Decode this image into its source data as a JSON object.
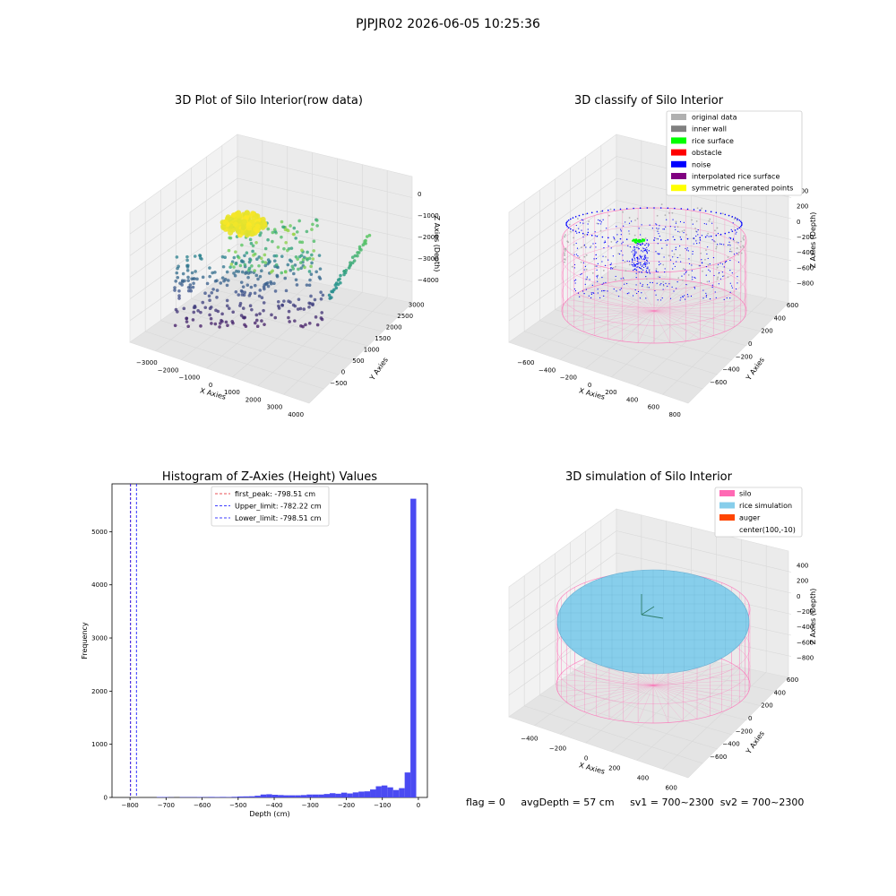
{
  "suptitle": "PJPJR02 2026-06-05 10:25:36",
  "status": {
    "flag": "flag = 0",
    "avg_depth": "avgDepth = 57 cm",
    "sv1": "sv1 = 700~2300",
    "sv2": "sv2 = 700~2300"
  },
  "colors": {
    "hist_bar": "#4a4af2",
    "first_peak": "#e41a1c",
    "limits": "#0000ff",
    "silo": "#ff69b4",
    "rice": "#87ceeb",
    "auger": "#ff4500",
    "original": "#b0b0b0",
    "inner_wall": "#808080",
    "rice_surface": "#00ff00",
    "obstacle": "#ff0000",
    "noise": "#0000ff",
    "interpolated": "#800080",
    "symmetric": "#ffff00"
  },
  "chart_data": [
    {
      "type": "scatter",
      "title": "3D Plot of Silo Interior(row data)",
      "xlabel": "X Axies",
      "ylabel": "Y Axies",
      "zlabel": "Z Axies (Depth)",
      "x_ticks": [
        "−3000",
        "−2000",
        "−1000",
        "0",
        "1000",
        "2000",
        "3000",
        "4000"
      ],
      "y_ticks": [
        "−500",
        "0",
        "500",
        "1000",
        "1500",
        "2000",
        "2500",
        "3000"
      ],
      "z_ticks": [
        "−4000",
        "−3000",
        "−2000",
        "−1000",
        "0"
      ]
    },
    {
      "type": "scatter",
      "title": "3D classify of Silo Interior",
      "xlabel": "X Axies",
      "ylabel": "Y Axies",
      "zlabel": "Z Axies (Depth)",
      "x_ticks": [
        "−600",
        "−400",
        "−200",
        "0",
        "200",
        "400",
        "600",
        "800"
      ],
      "y_ticks": [
        "−600",
        "−400",
        "−200",
        "0",
        "200",
        "400",
        "600"
      ],
      "z_ticks": [
        "−800",
        "−600",
        "−400",
        "−200",
        "0",
        "200",
        "400"
      ],
      "legend": [
        "original data",
        "inner wall",
        "rice surface",
        "obstacle",
        "noise",
        "interpolated rice surface",
        "symmetric generated points"
      ]
    },
    {
      "type": "bar",
      "title": "Histogram of Z-Axies (Height) Values",
      "xlabel": "Depth (cm)",
      "ylabel": "Frequency",
      "xlim": [
        -850,
        25
      ],
      "ylim": [
        0,
        5900
      ],
      "x_ticks": [
        -800,
        -700,
        -600,
        -500,
        -400,
        -300,
        -200,
        -100,
        0
      ],
      "x_tick_labels": [
        "−800",
        "−700",
        "−600",
        "−500",
        "−400",
        "−300",
        "−200",
        "−100",
        "0"
      ],
      "y_ticks": [
        0,
        1000,
        2000,
        3000,
        4000,
        5000
      ],
      "y_tick_labels": [
        "0",
        "1000",
        "2000",
        "3000",
        "4000",
        "5000"
      ],
      "bin_width": 16,
      "bins": [
        {
          "x": -718,
          "v": 8
        },
        {
          "x": -702,
          "v": 8
        },
        {
          "x": -686,
          "v": 3
        },
        {
          "x": -654,
          "v": 6
        },
        {
          "x": -638,
          "v": 6
        },
        {
          "x": -622,
          "v": 6
        },
        {
          "x": -606,
          "v": 8
        },
        {
          "x": -590,
          "v": 6
        },
        {
          "x": -574,
          "v": 10
        },
        {
          "x": -558,
          "v": 8
        },
        {
          "x": -542,
          "v": 10
        },
        {
          "x": -526,
          "v": 8
        },
        {
          "x": -510,
          "v": 12
        },
        {
          "x": -494,
          "v": 18
        },
        {
          "x": -478,
          "v": 20
        },
        {
          "x": -462,
          "v": 22
        },
        {
          "x": -446,
          "v": 32
        },
        {
          "x": -430,
          "v": 55
        },
        {
          "x": -414,
          "v": 60
        },
        {
          "x": -398,
          "v": 50
        },
        {
          "x": -382,
          "v": 45
        },
        {
          "x": -366,
          "v": 40
        },
        {
          "x": -350,
          "v": 40
        },
        {
          "x": -334,
          "v": 40
        },
        {
          "x": -318,
          "v": 45
        },
        {
          "x": -302,
          "v": 55
        },
        {
          "x": -286,
          "v": 55
        },
        {
          "x": -270,
          "v": 55
        },
        {
          "x": -254,
          "v": 65
        },
        {
          "x": -238,
          "v": 80
        },
        {
          "x": -222,
          "v": 70
        },
        {
          "x": -206,
          "v": 90
        },
        {
          "x": -190,
          "v": 75
        },
        {
          "x": -174,
          "v": 95
        },
        {
          "x": -158,
          "v": 110
        },
        {
          "x": -142,
          "v": 115
        },
        {
          "x": -126,
          "v": 150
        },
        {
          "x": -110,
          "v": 210
        },
        {
          "x": -94,
          "v": 225
        },
        {
          "x": -78,
          "v": 190
        },
        {
          "x": -62,
          "v": 140
        },
        {
          "x": -46,
          "v": 175
        },
        {
          "x": -30,
          "v": 470
        },
        {
          "x": -14,
          "v": 5620
        }
      ],
      "vlines": [
        {
          "name": "first_peak: -798.51 cm",
          "x": -798.51,
          "color": "#e41a1c"
        },
        {
          "name": "Upper_limit: -782.22 cm",
          "x": -782.22,
          "color": "#0000ff"
        },
        {
          "name": "Lower_limit: -798.51 cm",
          "x": -798.51,
          "color": "#0000ff"
        }
      ]
    },
    {
      "type": "scatter",
      "title": "3D simulation of Silo Interior",
      "xlabel": "X Axies",
      "ylabel": "Y Axies",
      "zlabel": "Z Axies (Depth)",
      "x_ticks": [
        "−400",
        "−200",
        "0",
        "200",
        "400",
        "600"
      ],
      "y_ticks": [
        "−600",
        "−400",
        "−200",
        "0",
        "200",
        "400",
        "600"
      ],
      "z_ticks": [
        "−800",
        "−600",
        "−400",
        "−200",
        "0",
        "200",
        "400"
      ],
      "legend": [
        "silo",
        "rice simulation",
        "auger",
        "center(100,-10)"
      ]
    }
  ]
}
